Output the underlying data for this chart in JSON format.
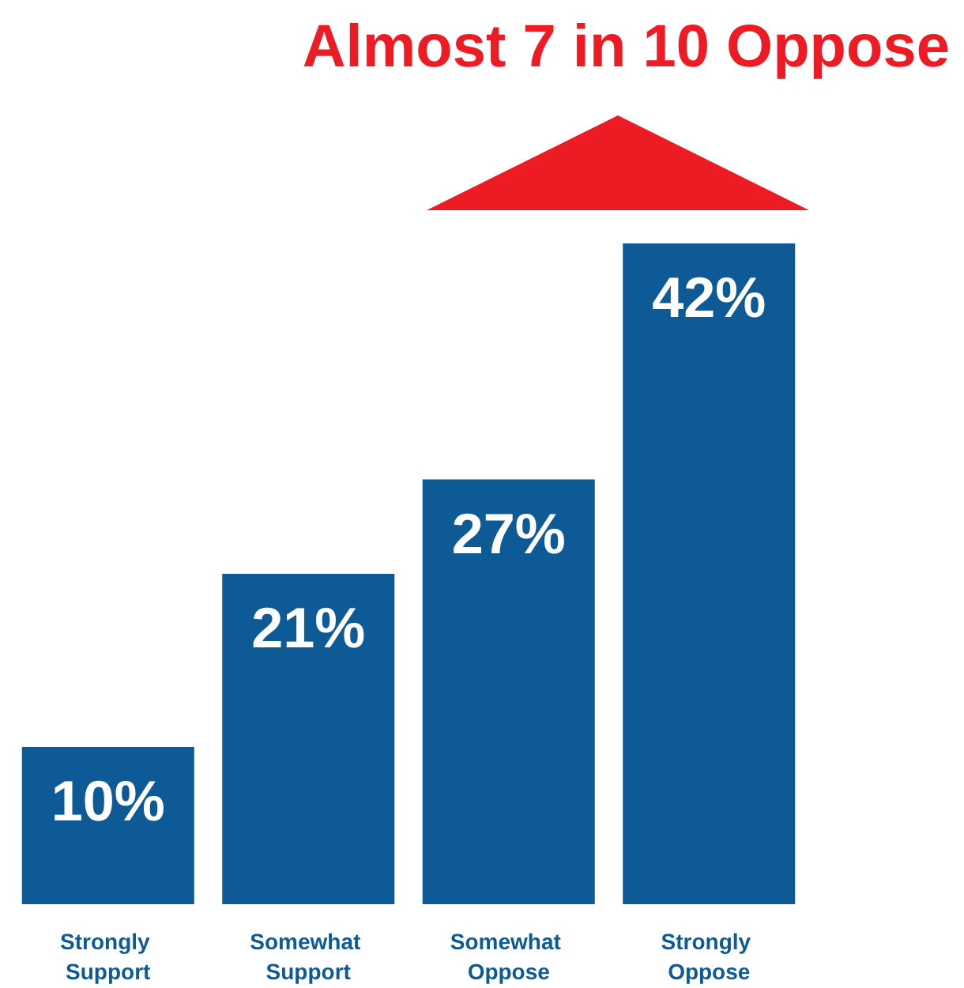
{
  "chart_data": {
    "type": "bar",
    "title": "Almost 7 in 10 Oppose",
    "categories": [
      "Strongly Support",
      "Somewhat Support",
      "Somewhat Oppose",
      "Strongly Oppose"
    ],
    "values": [
      10,
      21,
      27,
      42
    ],
    "value_labels": [
      "10%",
      "21%",
      "27%",
      "42%"
    ],
    "color": "#0d5a96",
    "grid": false
  }
}
